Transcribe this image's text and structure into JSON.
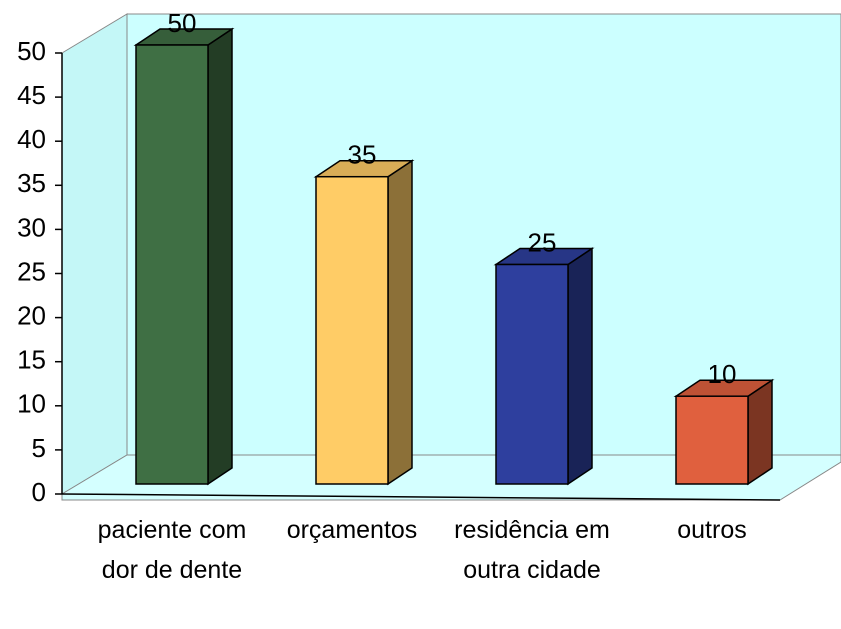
{
  "chart_data": {
    "type": "bar",
    "categories": [
      "paciente com dor de dente",
      "orçamentos",
      "residência em outra cidade",
      "outros"
    ],
    "series": [
      {
        "name": null,
        "colors": [
          "#3f6f44",
          "#ffcc66",
          "#2e3f9e",
          "#e0603e"
        ],
        "values": [
          50,
          35,
          25,
          10
        ]
      }
    ],
    "ylim": [
      0,
      50
    ],
    "yticks": [
      0,
      5,
      10,
      15,
      20,
      25,
      30,
      35,
      40,
      45,
      50
    ],
    "grid": false
  }
}
